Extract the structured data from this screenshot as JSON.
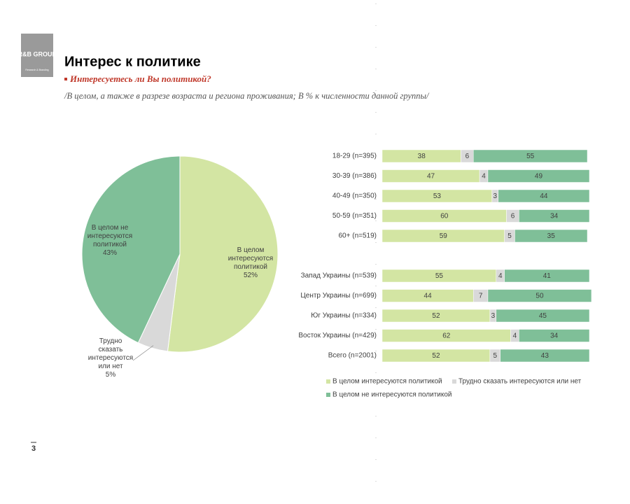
{
  "header": {
    "logo": "R&B GROUP",
    "logo_sub": "Research & Branding",
    "title": "Интерес к политике",
    "subtitle": "Интересуетесь ли Вы политикой?",
    "note": "/В целом, а также в разрезе возраста и региона проживания; В % к численности данной группы/",
    "page_number": "3"
  },
  "chart_data": [
    {
      "type": "pie",
      "categories": [
        "В целом интересуются политикой",
        "Трудно сказать интересуются или нет",
        "В целом не интересуются политикой"
      ],
      "values": [
        52,
        5,
        43
      ],
      "value_labels": [
        "52%",
        "5%",
        "43%"
      ],
      "colors": [
        "#d3e5a3",
        "#d9d9d9",
        "#7fbf98"
      ]
    },
    {
      "type": "stacked-bar-horizontal",
      "categories": [
        "18-29 (n=395)",
        "30-39 (n=386)",
        "40-49 (n=350)",
        "50-59 (n=351)",
        "60+ (n=519)",
        null,
        "Запад Украины (n=539)",
        "Центр Украины (n=699)",
        "Юг Украины (n=334)",
        "Восток Украины (n=429)",
        "Всего (n=2001)"
      ],
      "series": [
        {
          "name": "В целом интересуются политикой",
          "color": "#d3e5a3",
          "values": [
            38,
            47,
            53,
            60,
            59,
            null,
            55,
            44,
            52,
            62,
            52
          ]
        },
        {
          "name": "Трудно сказать интересуются или нет",
          "color": "#d9d9d9",
          "values": [
            6,
            4,
            3,
            6,
            5,
            null,
            4,
            7,
            3,
            4,
            5
          ]
        },
        {
          "name": "В целом не интересуются политикой",
          "color": "#7fbf98",
          "values": [
            55,
            49,
            44,
            34,
            35,
            null,
            41,
            50,
            45,
            34,
            43
          ]
        }
      ],
      "xlim": [
        0,
        100
      ]
    }
  ]
}
